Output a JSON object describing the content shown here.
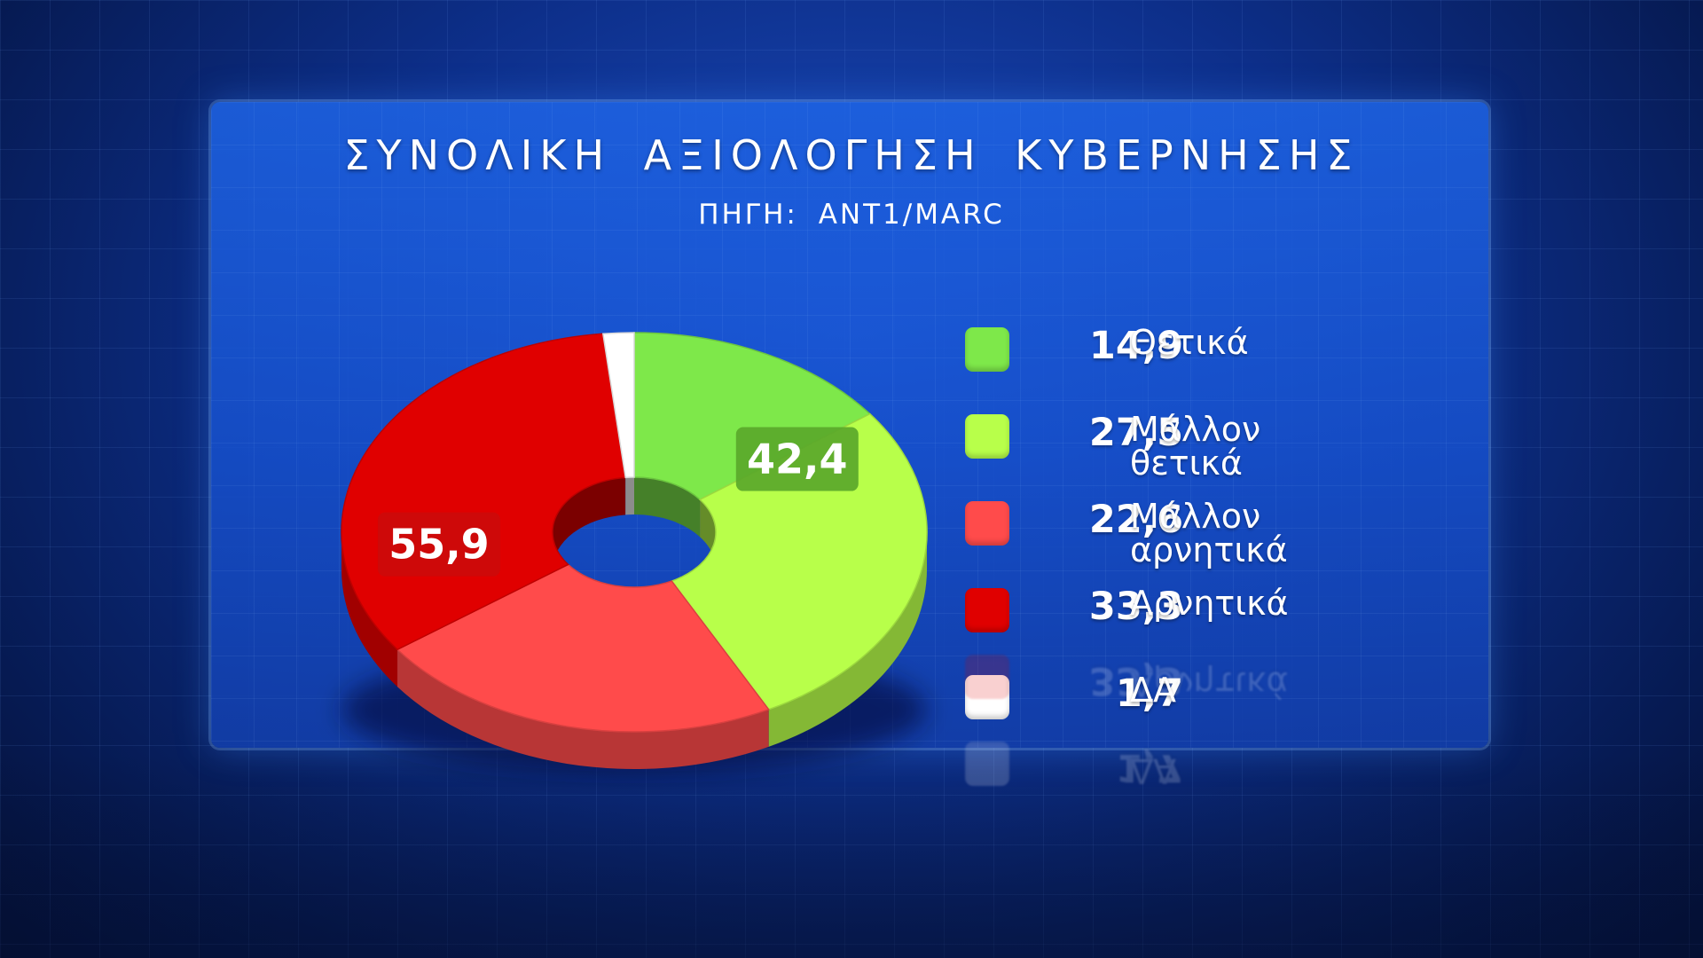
{
  "header": {
    "title": "ΣΥΝΟΛΙΚΗ ΑΞΙΟΛΟΓΗΣΗ ΚΥΒΕΡΝΗΣΗΣ",
    "subtitle": "ΠΗΓΗ: ANT1/MARC"
  },
  "chart_data": {
    "type": "pie",
    "title": "ΣΥΝΟΛΙΚΗ ΑΞΙΟΛΟΓΗΣΗ ΚΥΒΕΡΝΗΣΗΣ",
    "subtitle": "ΠΗΓΗ: ANT1/MARC",
    "style": "3d-donut",
    "legend_position": "right",
    "slices": [
      {
        "label": "Θετικά",
        "value": 14.9,
        "value_text": "14,9",
        "color": "#7ee84a"
      },
      {
        "label": "Μάλλον θετικά",
        "value": 27.5,
        "value_text": "27,5",
        "color": "#b8ff4a"
      },
      {
        "label": "Μάλλον αρνητικά",
        "value": 22.6,
        "value_text": "22,6",
        "color": "#ff4b4b"
      },
      {
        "label": "Αρνητικά",
        "value": 33.3,
        "value_text": "33,3",
        "color": "#e00000"
      },
      {
        "label": "ΔΑ",
        "value": 1.7,
        "value_text": "1,7",
        "color": "#ffffff"
      }
    ],
    "group_labels": [
      {
        "text": "42,4",
        "value": 42.4,
        "group": "positive",
        "color": "#5aa82a"
      },
      {
        "text": "55,9",
        "value": 55.9,
        "group": "negative",
        "color": "#cc0a0a"
      }
    ]
  },
  "legend": {
    "items": [
      {
        "value": "14,9",
        "label": "Θετικά",
        "color": "#7ee84a"
      },
      {
        "value": "27,5",
        "label": "Μάλλον θετικά",
        "color": "#b8ff4a"
      },
      {
        "value": "22,6",
        "label": "Μάλλον αρνητικά",
        "color": "#ff4b4b"
      },
      {
        "value": "33,3",
        "label": "Αρνητικά",
        "color": "#e00000"
      },
      {
        "value": "1,7",
        "label": "ΔΑ",
        "color": "#ffffff"
      }
    ]
  }
}
